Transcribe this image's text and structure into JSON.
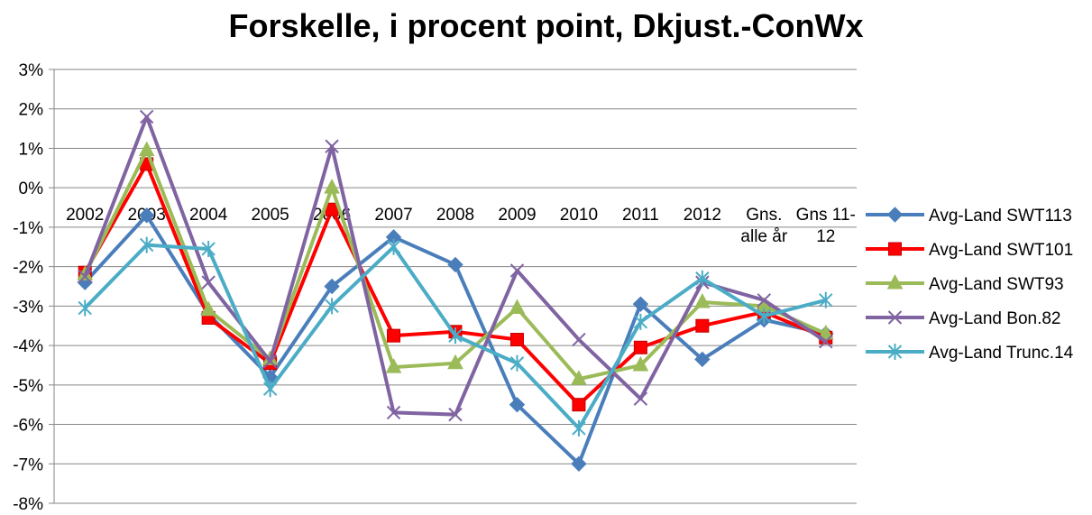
{
  "chart_data": {
    "type": "line",
    "title": "Forskelle, i procent point, Dkjust.-ConWx",
    "categories": [
      "2002",
      "2003",
      "2004",
      "2005",
      "2006",
      "2007",
      "2008",
      "2009",
      "2010",
      "2011",
      "2012",
      "Gns. alle år",
      "Gns 11-12"
    ],
    "y_ticks": [
      "3%",
      "2%",
      "1%",
      "0%",
      "-1%",
      "-2%",
      "-3%",
      "-4%",
      "-5%",
      "-6%",
      "-7%",
      "-8%"
    ],
    "ylim": [
      -8,
      3
    ],
    "grid": "horizontal",
    "legend_position": "right",
    "series": [
      {
        "name": "Avg-Land SWT113",
        "color": "#4a7ebb",
        "marker": "diamond",
        "values": [
          -2.4,
          -0.7,
          -3.2,
          -4.8,
          -2.5,
          -1.25,
          -1.95,
          -5.5,
          -7.0,
          -2.95,
          -4.35,
          -3.35,
          -3.7
        ]
      },
      {
        "name": "Avg-Land SWT101",
        "color": "#ff0000",
        "marker": "square",
        "values": [
          -2.15,
          0.6,
          -3.3,
          -4.45,
          -0.55,
          -3.75,
          -3.65,
          -3.85,
          -5.5,
          -4.05,
          -3.5,
          -3.15,
          -3.8
        ]
      },
      {
        "name": "Avg-Land SWT93",
        "color": "#9bbb59",
        "marker": "triangle",
        "values": [
          -2.2,
          0.95,
          -3.1,
          -4.35,
          0.0,
          -4.55,
          -4.45,
          -3.05,
          -4.85,
          -4.5,
          -2.9,
          -3.0,
          -3.7
        ]
      },
      {
        "name": "Avg-Land Bon.82",
        "color": "#8064a2",
        "marker": "x",
        "values": [
          -2.25,
          1.8,
          -2.4,
          -4.4,
          1.05,
          -5.7,
          -5.75,
          -2.1,
          -3.85,
          -5.35,
          -2.4,
          -2.85,
          -3.9
        ]
      },
      {
        "name": "Avg-Land Trunc.14",
        "color": "#4bacc6",
        "marker": "star",
        "values": [
          -3.05,
          -1.45,
          -1.55,
          -5.1,
          -3.0,
          -1.5,
          -3.75,
          -4.45,
          -6.1,
          -3.4,
          -2.3,
          -3.25,
          -2.85
        ]
      }
    ]
  }
}
